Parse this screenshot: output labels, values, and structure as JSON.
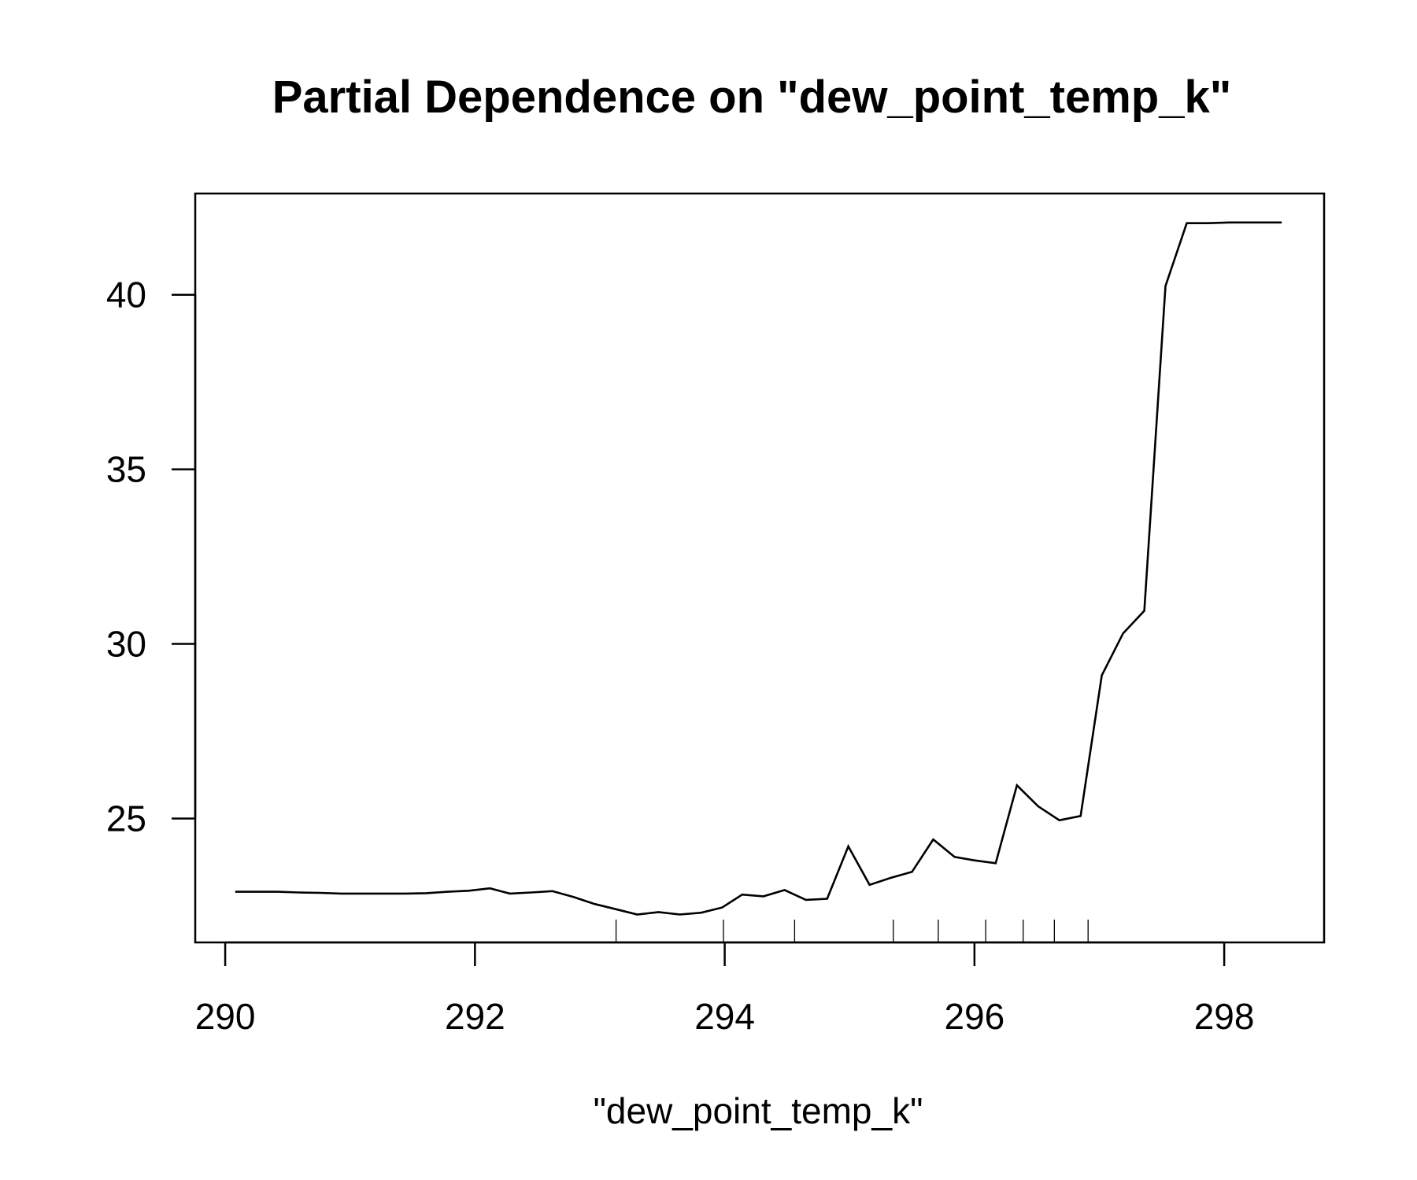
{
  "chart_data": {
    "type": "line",
    "title": "Partial Dependence on \"dew_point_temp_k\"",
    "xlabel": "\"dew_point_temp_k\"",
    "ylabel": "",
    "xlim": [
      289.76,
      298.8
    ],
    "ylim": [
      21.45,
      42.9
    ],
    "x_ticks": [
      290,
      292,
      294,
      296,
      298
    ],
    "x_tick_labels": [
      "290",
      "292",
      "294",
      "296",
      "298"
    ],
    "y_ticks": [
      25,
      30,
      35,
      40
    ],
    "y_tick_labels": [
      "25",
      "30",
      "35",
      "40"
    ],
    "grid": false,
    "legend": "none",
    "line_color": "#000000",
    "series": [
      {
        "x": [
          290.08,
          290.25,
          290.42,
          290.59,
          290.76,
          290.93,
          291.1,
          291.27,
          291.44,
          291.61,
          291.78,
          291.95,
          292.12,
          292.28,
          292.45,
          292.62,
          292.79,
          292.96,
          293.13,
          293.3,
          293.47,
          293.64,
          293.81,
          293.98,
          294.14,
          294.31,
          294.48,
          294.65,
          294.82,
          294.99,
          295.16,
          295.33,
          295.5,
          295.67,
          295.84,
          296.0,
          296.17,
          296.34,
          296.51,
          296.68,
          296.85,
          297.02,
          297.19,
          297.36,
          297.53,
          297.7,
          297.87,
          298.04,
          298.21,
          298.38,
          298.46
        ],
        "values": [
          22.9,
          22.9,
          22.9,
          22.88,
          22.87,
          22.85,
          22.85,
          22.85,
          22.85,
          22.86,
          22.9,
          22.93,
          23.0,
          22.85,
          22.88,
          22.92,
          22.75,
          22.55,
          22.4,
          22.25,
          22.32,
          22.25,
          22.3,
          22.45,
          22.82,
          22.77,
          22.95,
          22.67,
          22.7,
          24.2,
          23.1,
          23.3,
          23.47,
          24.4,
          23.9,
          23.8,
          23.72,
          25.95,
          25.35,
          24.95,
          25.07,
          29.1,
          30.3,
          30.95,
          40.25,
          42.05,
          42.05,
          42.07,
          42.07,
          42.07,
          42.07
        ]
      }
    ],
    "rug": [
      293.13,
      293.99,
      294.56,
      295.35,
      295.71,
      296.09,
      296.39,
      296.64,
      296.91
    ]
  }
}
